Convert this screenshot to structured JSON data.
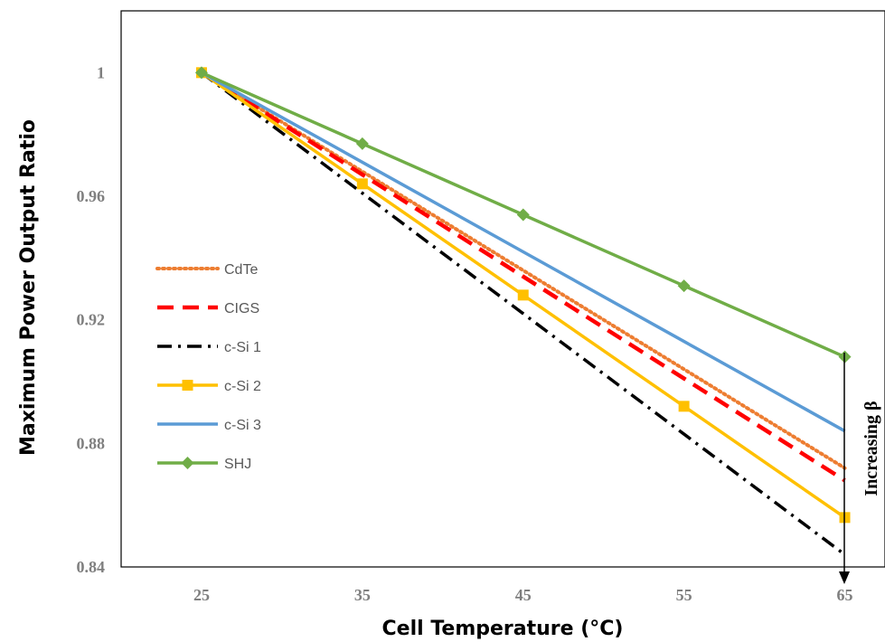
{
  "chart_data": {
    "type": "line",
    "title": "",
    "xlabel": "Cell Temperature (°C)",
    "ylabel": "Maximum Power Output Ratio",
    "x": [
      25,
      35,
      45,
      55,
      65
    ],
    "x_tick_labels": [
      "25",
      "35",
      "45",
      "55",
      "65"
    ],
    "y_tick_labels": [
      "0.84",
      "0.88",
      "0.92",
      "0.96",
      "1"
    ],
    "y_ticks": [
      0.84,
      0.88,
      0.92,
      0.96,
      1.0
    ],
    "xlim": [
      20,
      67.5
    ],
    "ylim": [
      0.84,
      1.02
    ],
    "grid": false,
    "legend_position": "left",
    "series": [
      {
        "name": "CdTe",
        "values": [
          1.0,
          0.968,
          0.936,
          0.904,
          0.872
        ],
        "color": "#ed7d31",
        "style": "dotted",
        "marker": "none"
      },
      {
        "name": "CIGS",
        "values": [
          1.0,
          0.967,
          0.934,
          0.901,
          0.868
        ],
        "color": "#ff0000",
        "style": "dashed",
        "marker": "none"
      },
      {
        "name": "c-Si 1",
        "values": [
          1.0,
          0.961,
          0.922,
          0.883,
          0.844
        ],
        "color": "#000000",
        "style": "dashdot",
        "marker": "none"
      },
      {
        "name": "c-Si 2",
        "values": [
          1.0,
          0.964,
          0.928,
          0.892,
          0.856
        ],
        "color": "#ffc000",
        "style": "solid",
        "marker": "square"
      },
      {
        "name": "c-Si 3",
        "values": [
          1.0,
          0.971,
          0.942,
          0.913,
          0.884
        ],
        "color": "#5b9bd5",
        "style": "solid",
        "marker": "none"
      },
      {
        "name": "SHJ",
        "values": [
          1.0,
          0.977,
          0.954,
          0.931,
          0.908
        ],
        "color": "#70ad47",
        "style": "solid",
        "marker": "diamond"
      }
    ],
    "annotation": {
      "text": "Increasing β",
      "direction": "down"
    }
  }
}
